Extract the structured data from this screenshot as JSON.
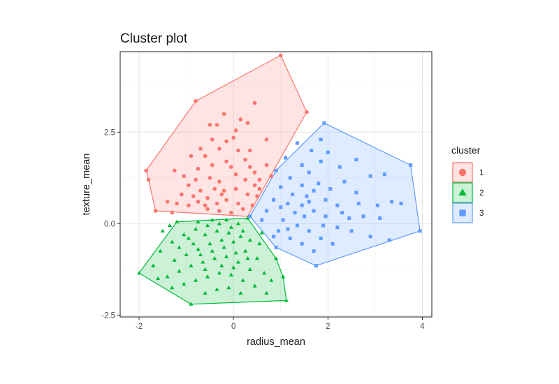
{
  "chart_data": {
    "type": "scatter",
    "title": "Cluster plot",
    "xlabel": "radius_mean",
    "ylabel": "texture_mean",
    "xlim": [
      -2.4,
      4.2
    ],
    "ylim": [
      -2.55,
      4.7
    ],
    "xticks": [
      -2,
      0,
      2,
      4
    ],
    "yticks": [
      -2.5,
      0.0,
      2.5
    ],
    "xtick_labels": [
      "-2",
      "0",
      "2",
      "4"
    ],
    "ytick_labels": [
      "-2.5",
      "0.0",
      "2.5"
    ],
    "grid": true,
    "legend": {
      "title": "cluster",
      "placement": "right"
    },
    "series": [
      {
        "name": "1",
        "color": "#F8766D",
        "marker": "circle",
        "hull": [
          [
            1.0,
            4.6
          ],
          [
            1.55,
            3.05
          ],
          [
            0.3,
            0.2
          ],
          [
            -1.65,
            0.35
          ],
          [
            -1.8,
            1.2
          ],
          [
            -1.85,
            1.45
          ],
          [
            -0.8,
            3.35
          ]
        ],
        "points": [
          [
            1.0,
            4.6
          ],
          [
            1.55,
            3.05
          ],
          [
            -0.8,
            3.35
          ],
          [
            -1.85,
            1.45
          ],
          [
            -1.8,
            1.2
          ],
          [
            -1.65,
            0.35
          ],
          [
            0.45,
            3.3
          ],
          [
            0.3,
            2.75
          ],
          [
            0.05,
            2.55
          ],
          [
            -0.45,
            2.3
          ],
          [
            -0.15,
            2.25
          ],
          [
            -0.35,
            2.7
          ],
          [
            0.35,
            2.0
          ],
          [
            0.1,
            2.0
          ],
          [
            -0.15,
            1.7
          ],
          [
            -0.45,
            1.6
          ],
          [
            -0.7,
            2.05
          ],
          [
            -0.9,
            1.85
          ],
          [
            -0.75,
            1.5
          ],
          [
            -1.05,
            1.3
          ],
          [
            -1.25,
            1.45
          ],
          [
            -0.5,
            1.25
          ],
          [
            -0.3,
            1.15
          ],
          [
            0.05,
            1.35
          ],
          [
            0.25,
            1.2
          ],
          [
            0.45,
            1.4
          ],
          [
            0.55,
            1.2
          ],
          [
            -0.95,
            1.05
          ],
          [
            -0.7,
            0.9
          ],
          [
            -0.4,
            0.95
          ],
          [
            -0.2,
            0.9
          ],
          [
            0.05,
            0.95
          ],
          [
            0.3,
            0.8
          ],
          [
            0.5,
            0.75
          ],
          [
            -1.2,
            0.55
          ],
          [
            -0.95,
            0.5
          ],
          [
            -0.75,
            0.6
          ],
          [
            -0.55,
            0.7
          ],
          [
            -0.35,
            0.55
          ],
          [
            -0.15,
            0.65
          ],
          [
            0.1,
            0.55
          ],
          [
            0.2,
            0.4
          ],
          [
            0.4,
            0.5
          ],
          [
            -0.55,
            0.4
          ],
          [
            -0.3,
            0.35
          ],
          [
            -0.05,
            0.3
          ],
          [
            -1.4,
            0.6
          ],
          [
            -1.3,
            0.3
          ],
          [
            0.7,
            1.6
          ],
          [
            0.8,
            1.3
          ],
          [
            0.25,
            1.75
          ],
          [
            -0.05,
            1.55
          ],
          [
            -0.6,
            1.85
          ],
          [
            0.0,
            2.35
          ],
          [
            -0.2,
            3.0
          ],
          [
            -0.5,
            2.7
          ],
          [
            0.15,
            2.85
          ],
          [
            0.7,
            2.3
          ],
          [
            -0.85,
            0.75
          ],
          [
            -1.1,
            0.8
          ],
          [
            -0.6,
            0.5
          ],
          [
            -0.25,
            0.8
          ],
          [
            0.55,
            0.95
          ],
          [
            -0.8,
            1.2
          ],
          [
            0.35,
            1.55
          ],
          [
            -0.3,
            2.05
          ],
          [
            0.45,
            1.05
          ]
        ]
      },
      {
        "name": "2",
        "color": "#00BA38",
        "marker": "triangle",
        "hull": [
          [
            -2.0,
            -1.35
          ],
          [
            -0.9,
            -2.2
          ],
          [
            1.12,
            -2.1
          ],
          [
            1.05,
            -1.45
          ],
          [
            0.9,
            -0.95
          ],
          [
            0.3,
            0.15
          ],
          [
            -1.2,
            0.05
          ]
        ],
        "points": [
          [
            -2.0,
            -1.35
          ],
          [
            -0.9,
            -2.2
          ],
          [
            1.12,
            -2.1
          ],
          [
            1.05,
            -1.45
          ],
          [
            0.9,
            -0.95
          ],
          [
            -1.2,
            0.05
          ],
          [
            0.3,
            0.15
          ],
          [
            -1.55,
            -0.75
          ],
          [
            -1.3,
            -0.5
          ],
          [
            -1.05,
            -0.3
          ],
          [
            -0.8,
            -0.15
          ],
          [
            -0.55,
            -0.05
          ],
          [
            -0.3,
            0.0
          ],
          [
            -0.05,
            -0.1
          ],
          [
            0.2,
            -0.2
          ],
          [
            0.35,
            -0.45
          ],
          [
            0.55,
            -0.55
          ],
          [
            -1.25,
            -1.0
          ],
          [
            -1.0,
            -0.85
          ],
          [
            -0.75,
            -0.7
          ],
          [
            -0.5,
            -0.55
          ],
          [
            -0.25,
            -0.45
          ],
          [
            0.0,
            -0.5
          ],
          [
            0.25,
            -0.75
          ],
          [
            0.5,
            -0.95
          ],
          [
            -1.4,
            -1.45
          ],
          [
            -1.15,
            -1.3
          ],
          [
            -0.9,
            -1.15
          ],
          [
            -0.65,
            -1.05
          ],
          [
            -0.4,
            -0.95
          ],
          [
            -0.15,
            -0.9
          ],
          [
            0.1,
            -1.05
          ],
          [
            0.35,
            -1.25
          ],
          [
            0.65,
            -1.35
          ],
          [
            -1.05,
            -1.65
          ],
          [
            -0.8,
            -1.55
          ],
          [
            -0.55,
            -1.45
          ],
          [
            -0.3,
            -1.35
          ],
          [
            -0.05,
            -1.4
          ],
          [
            0.2,
            -1.55
          ],
          [
            0.45,
            -1.7
          ],
          [
            -0.6,
            -1.9
          ],
          [
            -0.35,
            -1.8
          ],
          [
            -0.1,
            -1.75
          ],
          [
            0.15,
            -1.9
          ],
          [
            0.7,
            -1.9
          ],
          [
            -1.7,
            -1.15
          ],
          [
            -0.95,
            -0.4
          ],
          [
            -0.6,
            -0.3
          ],
          [
            -0.35,
            -0.2
          ],
          [
            -0.1,
            -0.25
          ],
          [
            0.15,
            -0.35
          ],
          [
            -1.5,
            -0.2
          ],
          [
            -1.15,
            -0.65
          ],
          [
            -0.7,
            -0.85
          ],
          [
            -0.45,
            -0.75
          ],
          [
            -0.2,
            -0.65
          ],
          [
            0.05,
            -0.8
          ],
          [
            0.3,
            -0.95
          ],
          [
            -0.85,
            -0.55
          ],
          [
            -0.6,
            -1.25
          ],
          [
            -0.25,
            -1.15
          ],
          [
            0.0,
            -1.2
          ],
          [
            -1.3,
            -1.75
          ],
          [
            -1.6,
            -1.5
          ],
          [
            0.8,
            -1.55
          ],
          [
            0.6,
            -0.25
          ],
          [
            -1.35,
            -0.05
          ],
          [
            -0.75,
            0.05
          ],
          [
            -0.45,
            0.1
          ],
          [
            -0.15,
            0.1
          ],
          [
            0.1,
            0.0
          ]
        ]
      },
      {
        "name": "3",
        "color": "#619CFF",
        "marker": "square",
        "hull": [
          [
            1.92,
            2.75
          ],
          [
            3.75,
            1.6
          ],
          [
            3.95,
            -0.2
          ],
          [
            1.75,
            -1.15
          ],
          [
            0.9,
            -0.65
          ],
          [
            0.35,
            0.2
          ],
          [
            0.9,
            1.45
          ]
        ],
        "points": [
          [
            1.92,
            2.75
          ],
          [
            3.75,
            1.6
          ],
          [
            3.95,
            -0.2
          ],
          [
            1.75,
            -1.15
          ],
          [
            0.9,
            -0.65
          ],
          [
            0.35,
            0.2
          ],
          [
            0.9,
            1.45
          ],
          [
            1.85,
            2.3
          ],
          [
            1.65,
            2.0
          ],
          [
            1.35,
            2.2
          ],
          [
            1.1,
            1.8
          ],
          [
            1.45,
            1.6
          ],
          [
            1.85,
            1.7
          ],
          [
            2.25,
            1.55
          ],
          [
            2.6,
            1.75
          ],
          [
            2.9,
            1.3
          ],
          [
            3.2,
            1.35
          ],
          [
            3.35,
            0.6
          ],
          [
            3.05,
            0.5
          ],
          [
            2.75,
            0.2
          ],
          [
            2.45,
            0.15
          ],
          [
            2.2,
            0.5
          ],
          [
            1.95,
            0.65
          ],
          [
            1.7,
            0.9
          ],
          [
            1.45,
            1.05
          ],
          [
            1.2,
            1.25
          ],
          [
            1.0,
            1.0
          ],
          [
            0.85,
            0.65
          ],
          [
            1.15,
            0.55
          ],
          [
            1.45,
            0.5
          ],
          [
            1.7,
            0.35
          ],
          [
            1.95,
            0.2
          ],
          [
            2.2,
            -0.1
          ],
          [
            2.5,
            -0.2
          ],
          [
            2.9,
            -0.35
          ],
          [
            3.3,
            -0.45
          ],
          [
            1.05,
            0.1
          ],
          [
            1.35,
            -0.05
          ],
          [
            1.6,
            -0.2
          ],
          [
            1.85,
            -0.4
          ],
          [
            2.1,
            -0.55
          ],
          [
            1.2,
            -0.4
          ],
          [
            1.45,
            -0.55
          ],
          [
            1.7,
            -0.75
          ],
          [
            0.95,
            -0.2
          ],
          [
            0.6,
            0.1
          ],
          [
            0.7,
            0.35
          ],
          [
            1.25,
            0.8
          ],
          [
            1.55,
            0.75
          ],
          [
            1.8,
            1.1
          ],
          [
            2.05,
            0.95
          ],
          [
            2.35,
            1.15
          ],
          [
            2.6,
            0.85
          ],
          [
            3.55,
            0.55
          ],
          [
            2.0,
            1.95
          ],
          [
            1.6,
            1.4
          ],
          [
            1.0,
            0.45
          ],
          [
            1.3,
            0.3
          ],
          [
            1.6,
            0.6
          ],
          [
            1.9,
            -0.05
          ],
          [
            2.3,
            0.3
          ],
          [
            2.65,
            0.55
          ],
          [
            3.1,
            0.15
          ],
          [
            0.85,
            -0.35
          ],
          [
            1.15,
            -0.15
          ],
          [
            1.5,
            0.2
          ]
        ]
      }
    ]
  }
}
